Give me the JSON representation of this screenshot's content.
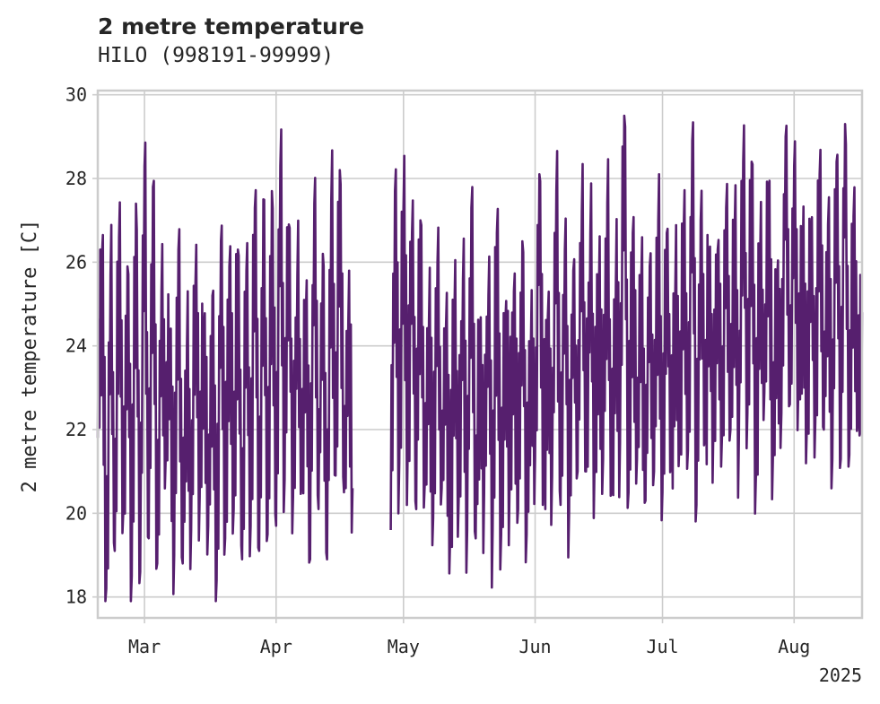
{
  "chart_data": {
    "type": "line",
    "title": "2 metre temperature",
    "subtitle": "HILO (998191-99999)",
    "xlabel": "",
    "ylabel": "2 metre temperature [C]",
    "x_range": [
      "2025-02-18",
      "2025-08-17"
    ],
    "ylim": [
      17.5,
      30.1
    ],
    "yticks": [
      18,
      20,
      22,
      24,
      26,
      28,
      30
    ],
    "xticks": [
      {
        "date": "2025-03-01",
        "label": "Mar"
      },
      {
        "date": "2025-04-01",
        "label": "Apr"
      },
      {
        "date": "2025-05-01",
        "label": "May"
      },
      {
        "date": "2025-06-01",
        "label": "Jun"
      },
      {
        "date": "2025-07-01",
        "label": "Jul"
      },
      {
        "date": "2025-08-01",
        "label": "Aug"
      }
    ],
    "year_label": "2025",
    "grid": true,
    "color": "#561f6e",
    "series": [
      {
        "name": "",
        "points": [
          [
            "2025-02-18",
            21.8
          ],
          [
            "2025-02-19",
            26.2
          ],
          [
            "2025-02-20",
            18.2
          ],
          [
            "2025-02-21",
            25.7
          ],
          [
            "2025-02-22",
            19.1
          ],
          [
            "2025-02-23",
            26.6
          ],
          [
            "2025-02-24",
            20.0
          ],
          [
            "2025-02-25",
            25.9
          ],
          [
            "2025-02-26",
            18.5
          ],
          [
            "2025-02-27",
            27.4
          ],
          [
            "2025-02-28",
            18.6
          ],
          [
            "2025-03-01",
            28.3
          ],
          [
            "2025-03-02",
            19.4
          ],
          [
            "2025-03-03",
            27.8
          ],
          [
            "2025-03-04",
            18.8
          ],
          [
            "2025-03-05",
            25.3
          ],
          [
            "2025-03-06",
            21.3
          ],
          [
            "2025-03-07",
            24.2
          ],
          [
            "2025-03-08",
            19.0
          ],
          [
            "2025-03-09",
            26.3
          ],
          [
            "2025-03-10",
            18.8
          ],
          [
            "2025-03-11",
            24.0
          ],
          [
            "2025-03-12",
            19.6
          ],
          [
            "2025-03-13",
            25.5
          ],
          [
            "2025-03-14",
            20.4
          ],
          [
            "2025-03-15",
            24.3
          ],
          [
            "2025-03-16",
            19.7
          ],
          [
            "2025-03-17",
            25.2
          ],
          [
            "2025-03-18",
            18.4
          ],
          [
            "2025-03-19",
            26.5
          ],
          [
            "2025-03-20",
            19.4
          ],
          [
            "2025-03-21",
            25.9
          ],
          [
            "2025-03-22",
            20.1
          ],
          [
            "2025-03-23",
            26.3
          ],
          [
            "2025-03-24",
            18.9
          ],
          [
            "2025-03-25",
            25.8
          ],
          [
            "2025-03-26",
            19.7
          ],
          [
            "2025-03-27",
            27.3
          ],
          [
            "2025-03-28",
            19.1
          ],
          [
            "2025-03-29",
            27.5
          ],
          [
            "2025-03-30",
            19.5
          ],
          [
            "2025-03-31",
            27.7
          ],
          [
            "2025-04-01",
            19.7
          ],
          [
            "2025-04-02",
            28.3
          ],
          [
            "2025-04-03",
            20.8
          ],
          [
            "2025-04-04",
            26.9
          ],
          [
            "2025-04-05",
            20.4
          ],
          [
            "2025-04-06",
            25.7
          ],
          [
            "2025-04-07",
            20.9
          ],
          [
            "2025-04-08",
            24.7
          ],
          [
            "2025-04-09",
            18.9
          ],
          [
            "2025-04-10",
            27.4
          ],
          [
            "2025-04-11",
            20.1
          ],
          [
            "2025-04-12",
            26.2
          ],
          [
            "2025-04-13",
            18.9
          ],
          [
            "2025-04-14",
            27.5
          ],
          [
            "2025-04-15",
            20.9
          ],
          [
            "2025-04-16",
            28.2
          ],
          [
            "2025-04-17",
            20.5
          ],
          [
            "2025-04-18",
            24.6
          ],
          [
            "2025-04-19",
            20.6
          ],
          null,
          [
            "2025-04-28",
            19.6
          ],
          [
            "2025-04-29",
            27.7
          ],
          [
            "2025-04-30",
            21.2
          ],
          [
            "2025-05-01",
            27.3
          ],
          [
            "2025-05-02",
            21.5
          ],
          [
            "2025-05-03",
            26.7
          ],
          [
            "2025-05-04",
            20.1
          ],
          [
            "2025-05-05",
            27.0
          ],
          [
            "2025-05-06",
            20.7
          ],
          [
            "2025-05-07",
            24.6
          ],
          [
            "2025-05-08",
            19.9
          ],
          [
            "2025-05-09",
            26.0
          ],
          [
            "2025-05-10",
            20.6
          ],
          [
            "2025-05-11",
            24.4
          ],
          [
            "2025-05-12",
            19.5
          ],
          [
            "2025-05-13",
            24.8
          ],
          [
            "2025-05-14",
            20.3
          ],
          [
            "2025-05-15",
            25.6
          ],
          [
            "2025-05-16",
            19.6
          ],
          [
            "2025-05-17",
            27.3
          ],
          [
            "2025-05-18",
            19.4
          ],
          [
            "2025-05-19",
            24.2
          ],
          [
            "2025-05-20",
            20.5
          ],
          [
            "2025-05-21",
            25.2
          ],
          [
            "2025-05-22",
            19.6
          ],
          [
            "2025-05-23",
            26.7
          ],
          [
            "2025-05-24",
            19.5
          ],
          [
            "2025-05-25",
            24.6
          ],
          [
            "2025-05-26",
            20.8
          ],
          [
            "2025-05-27",
            25.3
          ],
          [
            "2025-05-28",
            20.1
          ],
          [
            "2025-05-29",
            26.5
          ],
          [
            "2025-05-30",
            19.5
          ],
          [
            "2025-05-31",
            24.0
          ],
          [
            "2025-06-01",
            21.3
          ],
          [
            "2025-06-02",
            28.1
          ],
          [
            "2025-06-03",
            21.1
          ],
          [
            "2025-06-04",
            24.7
          ],
          [
            "2025-06-05",
            20.9
          ],
          [
            "2025-06-06",
            27.7
          ],
          [
            "2025-06-07",
            20.2
          ],
          [
            "2025-06-08",
            26.3
          ],
          [
            "2025-06-09",
            20.0
          ],
          [
            "2025-06-10",
            25.8
          ],
          [
            "2025-06-11",
            21.0
          ],
          [
            "2025-06-12",
            27.2
          ],
          [
            "2025-06-13",
            21.0
          ],
          [
            "2025-06-14",
            26.7
          ],
          [
            "2025-06-15",
            21.2
          ],
          [
            "2025-06-16",
            25.1
          ],
          [
            "2025-06-17",
            21.3
          ],
          [
            "2025-06-18",
            27.4
          ],
          [
            "2025-06-19",
            20.6
          ],
          [
            "2025-06-20",
            25.4
          ],
          [
            "2025-06-21",
            21.7
          ],
          [
            "2025-06-22",
            29.5
          ],
          [
            "2025-06-23",
            20.5
          ],
          [
            "2025-06-24",
            26.7
          ],
          [
            "2025-06-25",
            21.3
          ],
          [
            "2025-06-26",
            25.6
          ],
          [
            "2025-06-27",
            20.3
          ],
          [
            "2025-06-28",
            25.9
          ],
          [
            "2025-06-29",
            21.0
          ],
          [
            "2025-06-30",
            27.0
          ],
          [
            "2025-07-01",
            20.5
          ],
          [
            "2025-07-02",
            26.7
          ],
          [
            "2025-07-03",
            21.6
          ],
          [
            "2025-07-04",
            25.2
          ],
          [
            "2025-07-05",
            21.8
          ],
          [
            "2025-07-06",
            26.8
          ],
          [
            "2025-07-07",
            21.5
          ],
          [
            "2025-07-08",
            28.9
          ],
          [
            "2025-07-09",
            20.2
          ],
          [
            "2025-07-10",
            27.0
          ],
          [
            "2025-07-11",
            21.9
          ],
          [
            "2025-07-12",
            25.8
          ],
          [
            "2025-07-13",
            22.1
          ],
          [
            "2025-07-14",
            26.3
          ],
          [
            "2025-07-15",
            21.8
          ],
          [
            "2025-07-16",
            27.3
          ],
          [
            "2025-07-17",
            22.0
          ],
          [
            "2025-07-18",
            26.8
          ],
          [
            "2025-07-19",
            21.8
          ],
          [
            "2025-07-20",
            28.4
          ],
          [
            "2025-07-21",
            22.4
          ],
          [
            "2025-07-22",
            28.4
          ],
          [
            "2025-07-23",
            20.9
          ],
          [
            "2025-07-24",
            26.1
          ],
          [
            "2025-07-25",
            22.9
          ],
          [
            "2025-07-26",
            27.7
          ],
          [
            "2025-07-27",
            21.3
          ],
          [
            "2025-07-28",
            25.6
          ],
          [
            "2025-07-29",
            22.4
          ],
          [
            "2025-07-30",
            29.0
          ],
          [
            "2025-07-31",
            22.6
          ],
          [
            "2025-08-01",
            28.3
          ],
          [
            "2025-08-02",
            23.0
          ],
          [
            "2025-08-03",
            25.9
          ],
          [
            "2025-08-04",
            22.1
          ],
          [
            "2025-08-05",
            26.6
          ],
          [
            "2025-08-06",
            22.2
          ],
          [
            "2025-08-07",
            28.1
          ],
          [
            "2025-08-08",
            22.0
          ],
          [
            "2025-08-09",
            26.9
          ],
          [
            "2025-08-10",
            21.3
          ],
          [
            "2025-08-11",
            28.4
          ],
          [
            "2025-08-12",
            21.3
          ],
          [
            "2025-08-13",
            29.3
          ],
          [
            "2025-08-14",
            21.4
          ],
          [
            "2025-08-15",
            27.1
          ],
          [
            "2025-08-16",
            22.3
          ],
          [
            "2025-08-17",
            24.8
          ]
        ]
      }
    ]
  }
}
